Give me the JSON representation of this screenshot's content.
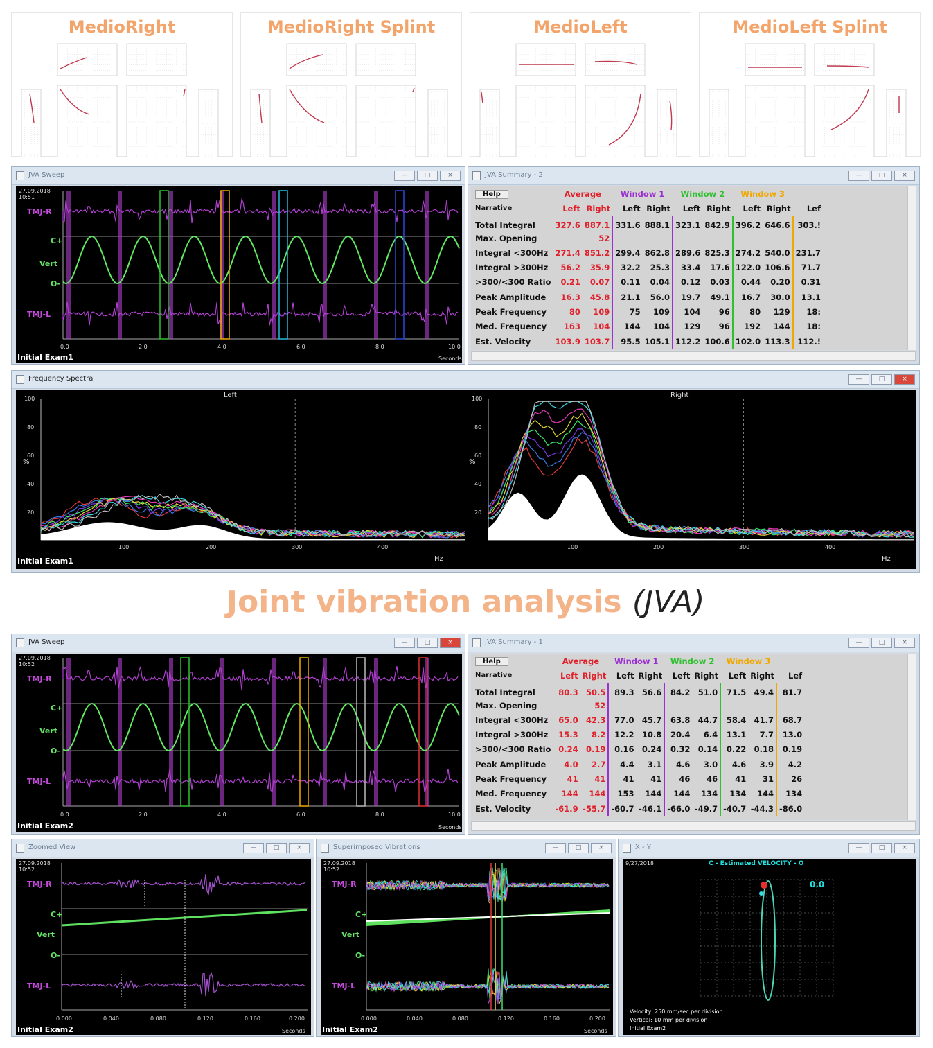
{
  "thumbnails": [
    {
      "title": "MedioRight"
    },
    {
      "title": "MedioRight Splint"
    },
    {
      "title": "MedioLeft"
    },
    {
      "title": "MedioLeft Splint"
    }
  ],
  "sweep1": {
    "title": "JVA Sweep",
    "date": "27.09.2018",
    "time": "10:51",
    "channels": [
      "TMJ-R",
      "C+",
      "Vert",
      "O-",
      "TMJ-L"
    ],
    "x_ticks": [
      "0.0",
      "2.0",
      "4.0",
      "6.0",
      "8.0",
      "10.0"
    ],
    "unit": "Seconds",
    "footer": "Initial Exam1"
  },
  "summary1": {
    "title": "JVA Summary - 2",
    "help": "Help",
    "narrative": "Narrative",
    "groups": [
      "Average",
      "Window 1",
      "Window 2",
      "Window 3"
    ],
    "group_colors": [
      "#e0202a",
      "#9b30d0",
      "#2ec02e",
      "#f0a800",
      "#22bbdd"
    ],
    "sub": [
      "Left",
      "Right",
      "Left",
      "Right",
      "Left",
      "Right",
      "Left",
      "Right",
      "Lef"
    ],
    "rows": [
      {
        "label": "Total Integral",
        "values": [
          "327.6",
          "887.1",
          "331.6",
          "888.1",
          "323.1",
          "842.9",
          "396.2",
          "646.6",
          "303.!"
        ]
      },
      {
        "label": "Max. Opening",
        "values": [
          "",
          "52",
          "",
          "",
          "",
          "",
          "",
          "",
          ""
        ]
      },
      {
        "label": "Integral <300Hz",
        "values": [
          "271.4",
          "851.2",
          "299.4",
          "862.8",
          "289.6",
          "825.3",
          "274.2",
          "540.0",
          "231.7"
        ]
      },
      {
        "label": "Integral >300Hz",
        "values": [
          "56.2",
          "35.9",
          "32.2",
          "25.3",
          "33.4",
          "17.6",
          "122.0",
          "106.6",
          "71.7"
        ]
      },
      {
        "label": ">300/<300 Ratio",
        "values": [
          "0.21",
          "0.07",
          "0.11",
          "0.04",
          "0.12",
          "0.03",
          "0.44",
          "0.20",
          "0.31"
        ]
      },
      {
        "label": "Peak Amplitude",
        "values": [
          "16.3",
          "45.8",
          "21.1",
          "56.0",
          "19.7",
          "49.1",
          "16.7",
          "30.0",
          "13.1"
        ]
      },
      {
        "label": "Peak Frequency",
        "values": [
          "80",
          "109",
          "75",
          "109",
          "104",
          "96",
          "80",
          "129",
          "18:"
        ]
      },
      {
        "label": "Med. Frequency",
        "values": [
          "163",
          "104",
          "144",
          "104",
          "129",
          "96",
          "192",
          "144",
          "18:"
        ]
      },
      {
        "label": "Est. Velocity",
        "values": [
          "103.9",
          "103.7",
          "95.5",
          "105.1",
          "112.2",
          "100.6",
          "102.0",
          "113.3",
          "112.!"
        ]
      }
    ]
  },
  "spectra": {
    "title": "Frequency Spectra",
    "left_title": "Left",
    "right_title": "Right",
    "y_ticks": [
      "100",
      "80",
      "60",
      "40",
      "20"
    ],
    "y_label": "%",
    "x_ticks": [
      "100",
      "200",
      "300",
      "400"
    ],
    "x_unit": "Hz",
    "footer": "Initial Exam1"
  },
  "banner": {
    "main": "Joint vibration analysis",
    "abbr": "(JVA)"
  },
  "sweep2": {
    "title": "JVA Sweep",
    "date": "27.09.2018",
    "time": "10:52",
    "channels": [
      "TMJ-R",
      "C+",
      "Vert",
      "O-",
      "TMJ-L"
    ],
    "x_ticks": [
      "0.0",
      "2.0",
      "4.0",
      "6.0",
      "8.0",
      "10.0"
    ],
    "unit": "Seconds",
    "footer": "Initial Exam2"
  },
  "summary2": {
    "title": "JVA Summary - 1",
    "help": "Help",
    "narrative": "Narrative",
    "groups": [
      "Average",
      "Window 1",
      "Window 2",
      "Window 3"
    ],
    "sub": [
      "Left",
      "Right",
      "Left",
      "Right",
      "Left",
      "Right",
      "Left",
      "Right",
      "Lef"
    ],
    "rows": [
      {
        "label": "Total Integral",
        "values": [
          "80.3",
          "50.5",
          "89.3",
          "56.6",
          "84.2",
          "51.0",
          "71.5",
          "49.4",
          "81.7"
        ]
      },
      {
        "label": "Max. Opening",
        "values": [
          "",
          "52",
          "",
          "",
          "",
          "",
          "",
          "",
          ""
        ]
      },
      {
        "label": "Integral <300Hz",
        "values": [
          "65.0",
          "42.3",
          "77.0",
          "45.7",
          "63.8",
          "44.7",
          "58.4",
          "41.7",
          "68.7"
        ]
      },
      {
        "label": "Integral >300Hz",
        "values": [
          "15.3",
          "8.2",
          "12.2",
          "10.8",
          "20.4",
          "6.4",
          "13.1",
          "7.7",
          "13.0"
        ]
      },
      {
        "label": ">300/<300 Ratio",
        "values": [
          "0.24",
          "0.19",
          "0.16",
          "0.24",
          "0.32",
          "0.14",
          "0.22",
          "0.18",
          "0.19"
        ]
      },
      {
        "label": "Peak Amplitude",
        "values": [
          "4.0",
          "2.7",
          "4.4",
          "3.1",
          "4.6",
          "3.0",
          "4.6",
          "3.9",
          "4.2"
        ]
      },
      {
        "label": "Peak Frequency",
        "values": [
          "41",
          "41",
          "41",
          "41",
          "46",
          "46",
          "41",
          "31",
          "26"
        ]
      },
      {
        "label": "Med. Frequency",
        "values": [
          "144",
          "144",
          "153",
          "144",
          "144",
          "134",
          "134",
          "144",
          "134"
        ]
      },
      {
        "label": "Est. Velocity",
        "values": [
          "-61.9",
          "-55.7",
          "-60.7",
          "-46.1",
          "-66.0",
          "-49.7",
          "-40.7",
          "-44.3",
          "-86.0"
        ]
      }
    ]
  },
  "zoomed": {
    "title": "Zoomed View",
    "date": "27.09.2018",
    "time": "10:52",
    "channels": [
      "TMJ-R",
      "C+",
      "Vert",
      "O-",
      "TMJ-L"
    ],
    "x_ticks": [
      "0.000",
      "0.040",
      "0.080",
      "0.120",
      "0.160",
      "0.200"
    ],
    "unit": "Seconds",
    "footer": "Initial Exam2"
  },
  "superimposed": {
    "title": "Superimposed Vibrations",
    "date": "27.09.2018",
    "time": "10:52",
    "channels": [
      "TMJ-R",
      "C+",
      "Vert",
      "O-",
      "TMJ-L"
    ],
    "x_ticks": [
      "0.000",
      "0.040",
      "0.080",
      "0.120",
      "0.160",
      "0.200"
    ],
    "unit": "Seconds",
    "footer": "Initial Exam2"
  },
  "xy": {
    "title": "X - Y",
    "date": "9/27/2018",
    "header": "C - Estimated VELOCITY - O",
    "scale": "0.0",
    "velocity_note": "Velocity: 250 mm/sec per division",
    "vertical_note": "Vertical: 10 mm per division",
    "footer": "Initial Exam2"
  },
  "window_buttons": {
    "minimize": "—",
    "maximize": "□",
    "close": "×"
  }
}
